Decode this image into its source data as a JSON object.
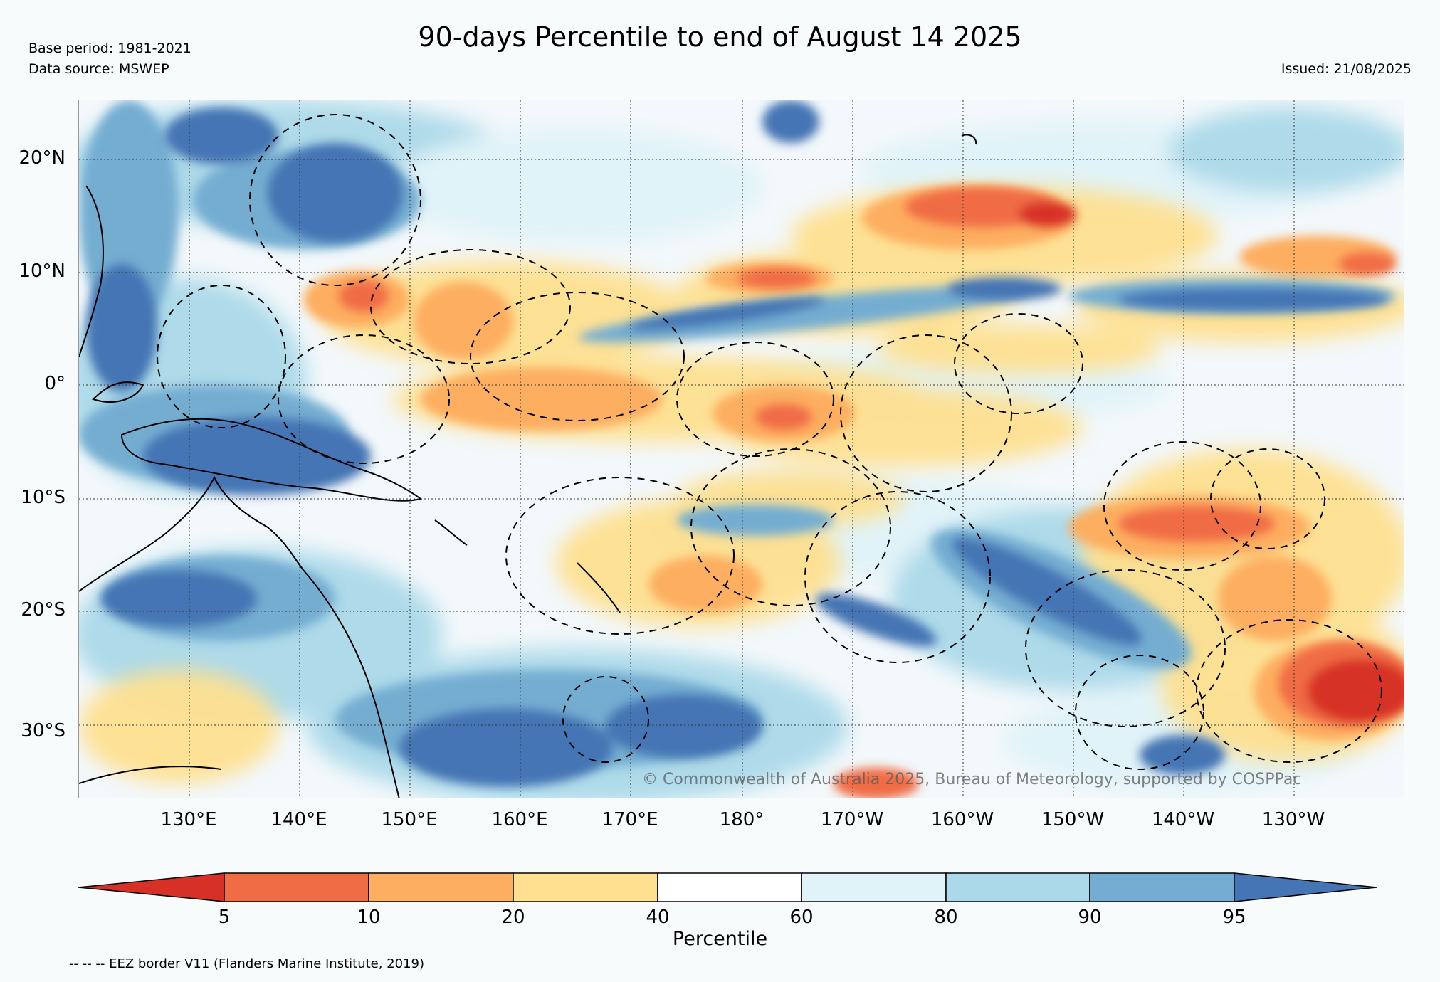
{
  "header": {
    "title": "90-days Percentile to end of August 14 2025",
    "base_period": "Base period: 1981-2021",
    "data_source": "Data source: MSWEP",
    "issued": "Issued: 21/08/2025"
  },
  "map": {
    "lat_ticks": [
      "20°N",
      "10°N",
      "0°",
      "10°S",
      "20°S",
      "30°S"
    ],
    "lon_ticks": [
      "130°E",
      "140°E",
      "150°E",
      "160°E",
      "170°E",
      "180°",
      "170°W",
      "160°W",
      "150°W",
      "140°W",
      "130°W"
    ],
    "copyright": "© Commonwealth of Australia 2025, Bureau of Meteorology, supported by COSPPac",
    "grid_lines": "dotted",
    "boundary_style": "dashed"
  },
  "colorbar": {
    "label": "Percentile",
    "ticks": [
      "5",
      "10",
      "20",
      "40",
      "60",
      "80",
      "90",
      "95"
    ],
    "colors": [
      "#d73027",
      "#f06c45",
      "#fdae61",
      "#fee090",
      "#ffffff",
      "#e0f3f8",
      "#abd9e9",
      "#74add1",
      "#4575b4"
    ]
  },
  "footer": {
    "eez_note": "-- -- -- EEZ border V11 (Flanders Marine Institute, 2019)"
  }
}
